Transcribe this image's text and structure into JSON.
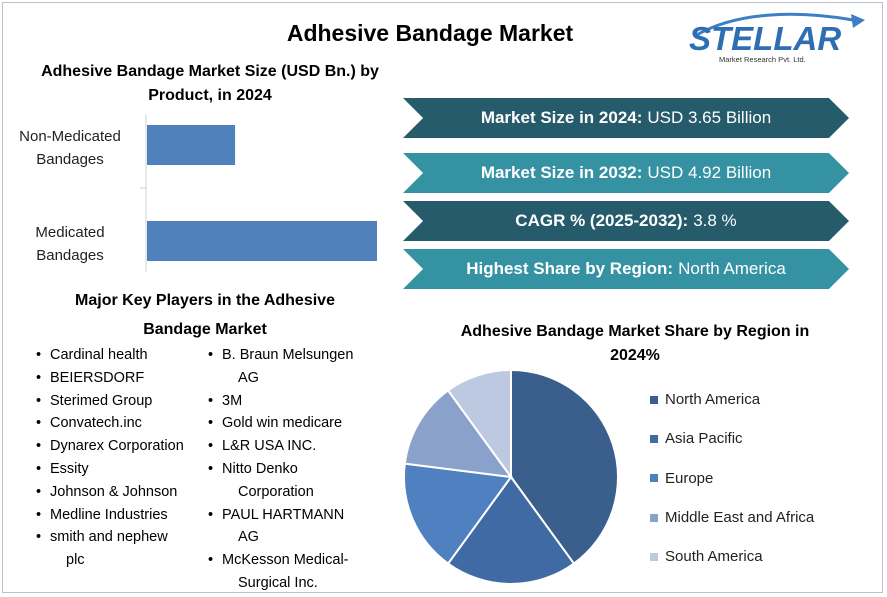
{
  "page": {
    "title": "Adhesive Bandage Market"
  },
  "logo": {
    "brand": "STELLAR",
    "subtitle": "Market Research Pvt. Ltd."
  },
  "bar_section": {
    "title": "Adhesive Bandage Market Size (USD Bn.) by Product, in 2024"
  },
  "kpis": [
    {
      "label": "Market Size in 2024:",
      "value": "USD 3.65 Billion",
      "color": "#255b6b"
    },
    {
      "label": "Market Size in 2032:",
      "value": "USD 4.92 Billion",
      "color": "#3592a3"
    },
    {
      "label": "CAGR % (2025-2032):",
      "value": "3.8 %",
      "color": "#255b6b"
    },
    {
      "label": "Highest Share by Region:",
      "value": "North America",
      "color": "#3592a3"
    }
  ],
  "players": {
    "title": "Major Key Players in the Adhesive Bandage Market",
    "col1": [
      "Cardinal health",
      "BEIERSDORF",
      "Sterimed Group",
      "Convatech.inc",
      "Dynarex Corporation",
      "Essity",
      "Johnson & Johnson",
      "Medline Industries",
      "smith and nephew plc"
    ],
    "col2": [
      "B. Braun Melsungen AG",
      "3M",
      "Gold win medicare",
      "L&R USA INC.",
      "Nitto Denko Corporation",
      "PAUL HARTMANN AG",
      "McKesson Medical-Surgical Inc."
    ]
  },
  "pie_section": {
    "title": "Adhesive Bandage Market Share by Region in 2024%"
  },
  "chart_data": [
    {
      "type": "bar",
      "orientation": "horizontal",
      "title": "Adhesive Bandage Market Size (USD Bn.) by Product, in 2024",
      "categories": [
        "Non-Medicated Bandages",
        "Medicated Bandages"
      ],
      "category_lines": [
        [
          "Non-Medicated",
          "Bandages"
        ],
        [
          "Medicated",
          "Bandages"
        ]
      ],
      "values": [
        0.9,
        2.35
      ],
      "xlim": [
        0,
        2.35
      ],
      "grid": false,
      "color": "#4f81bd"
    },
    {
      "type": "pie",
      "title": "Adhesive Bandage Market Share by Region in 2024%",
      "categories": [
        "North America",
        "Asia Pacific",
        "Europe",
        "Middle East and Africa",
        "South America"
      ],
      "values": [
        40,
        20,
        17,
        13,
        10
      ],
      "colors": [
        "#3a5f8c",
        "#3f6aa3",
        "#4f80c0",
        "#8aa2cb",
        "#bcc9e0"
      ],
      "legend_position": "right"
    }
  ]
}
